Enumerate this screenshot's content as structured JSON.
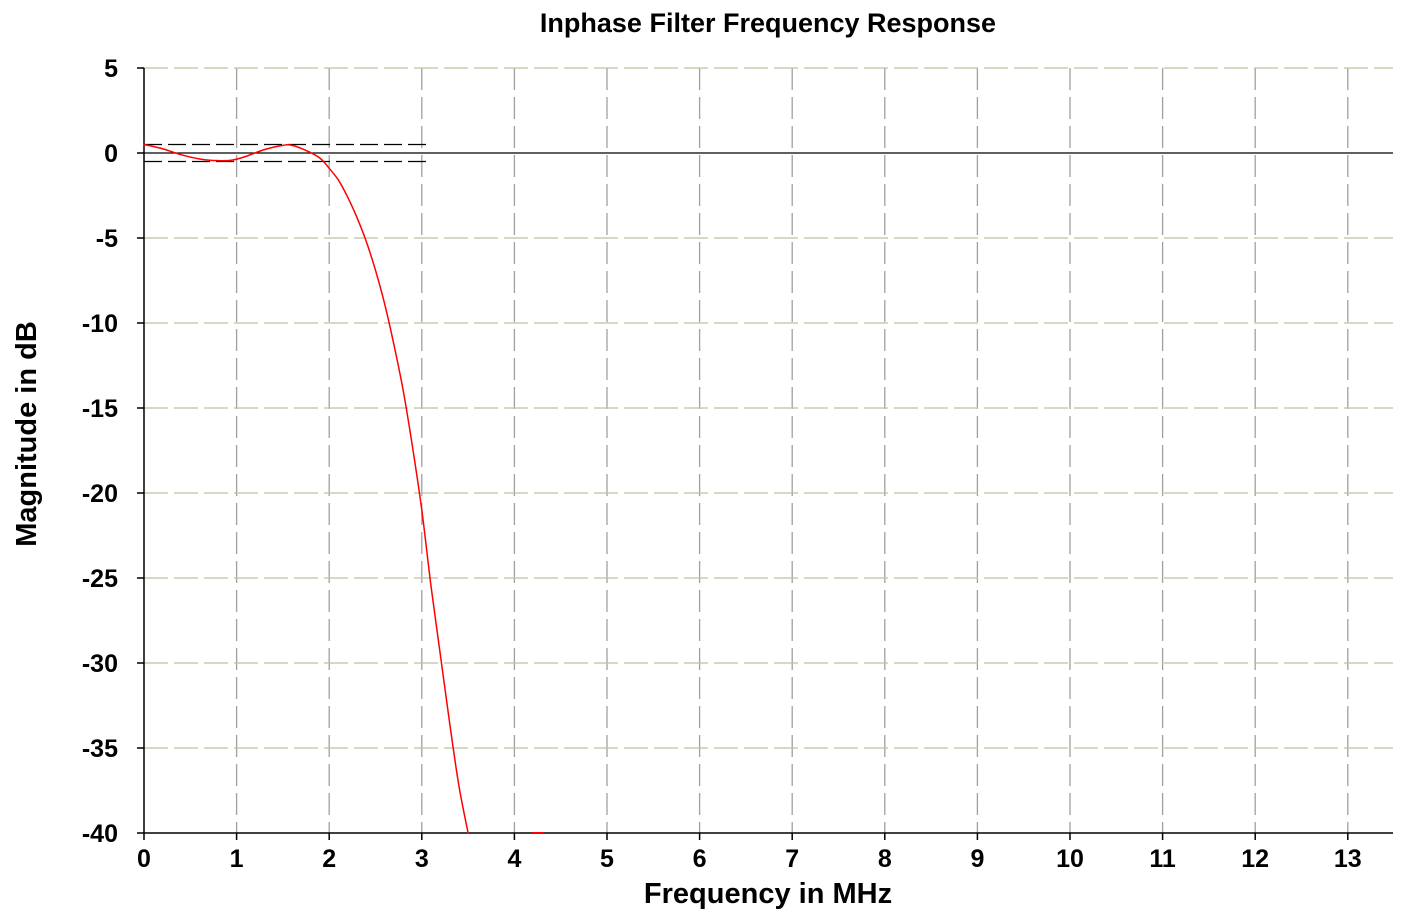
{
  "chart_data": {
    "type": "line",
    "title": "Inphase Filter Frequency Response",
    "xlabel": "Frequency in MHz",
    "ylabel": "Magnitude in dB",
    "xlim": [
      0,
      13.5
    ],
    "ylim": [
      -40,
      5
    ],
    "x_ticks": [
      "0",
      "1",
      "2",
      "3",
      "4",
      "5",
      "6",
      "7",
      "8",
      "9",
      "10",
      "11",
      "12",
      "13"
    ],
    "y_ticks": [
      "5",
      "0",
      "-5",
      "-10",
      "-15",
      "-20",
      "-25",
      "-30",
      "-35",
      "-40"
    ],
    "grid": true,
    "colors": {
      "series": "#ff0000",
      "grid_gray": "#a0a0a0",
      "grid_olive": "#bfbf9f",
      "axis": "#000000"
    },
    "series": [
      {
        "x": [
          0,
          0.2,
          0.4,
          0.6,
          0.8,
          0.95,
          1.1,
          1.3,
          1.5,
          1.6,
          1.75,
          1.9,
          2.0,
          2.1,
          2.2,
          2.3,
          2.4,
          2.5,
          2.6,
          2.7,
          2.8,
          2.9,
          3.0,
          3.1,
          3.2,
          3.3,
          3.4,
          3.5
        ],
        "y": [
          0.5,
          0.25,
          -0.1,
          -0.35,
          -0.45,
          -0.42,
          -0.2,
          0.2,
          0.45,
          0.45,
          0.15,
          -0.3,
          -0.9,
          -1.6,
          -2.6,
          -3.8,
          -5.2,
          -6.9,
          -8.9,
          -11.3,
          -14.0,
          -17.3,
          -21.0,
          -25.5,
          -29.5,
          -33.5,
          -37.2,
          -40.0
        ]
      }
    ],
    "reference_lines": [
      {
        "y": 0.5,
        "x_range": [
          0,
          3.1
        ],
        "style": "dashed"
      },
      {
        "y": -0.5,
        "x_range": [
          0,
          3.1
        ],
        "style": "dashed"
      }
    ],
    "stray_marks": [
      {
        "x": 4.25,
        "y": -40
      }
    ]
  }
}
